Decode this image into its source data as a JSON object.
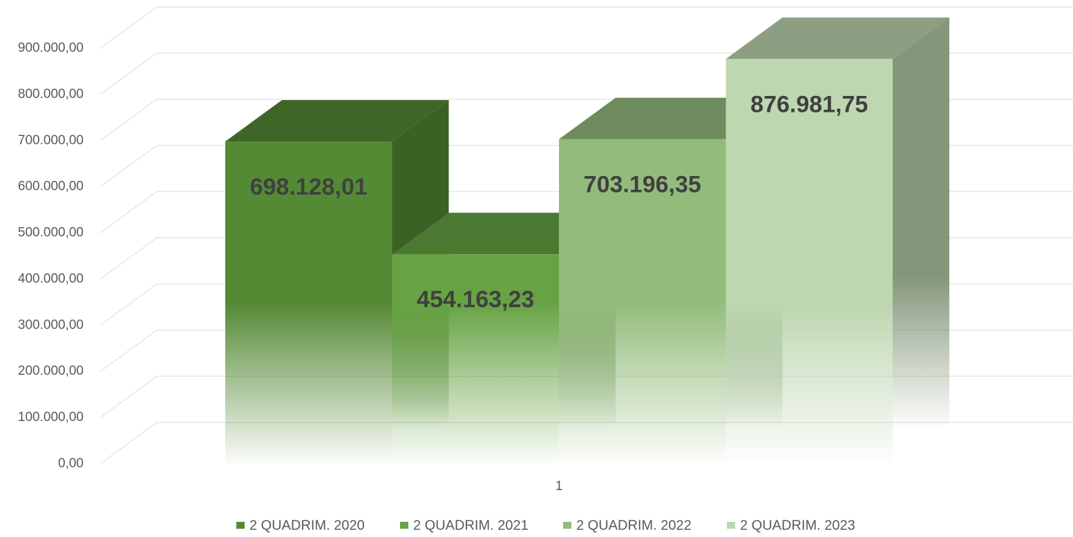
{
  "chart_data": {
    "type": "bar3d",
    "categories": [
      "1"
    ],
    "series": [
      {
        "name": "2 QUADRIM. 2020",
        "color": "#558a35",
        "values": [
          698128.01
        ],
        "value_labels": [
          "698.128,01"
        ]
      },
      {
        "name": "2 QUADRIM. 2021",
        "color": "#67a343",
        "values": [
          454163.23
        ],
        "value_labels": [
          "454.163,23"
        ]
      },
      {
        "name": "2 QUADRIM. 2022",
        "color": "#93bc7c",
        "values": [
          703196.35
        ],
        "value_labels": [
          "703.196,35"
        ]
      },
      {
        "name": "2 QUADRIM. 2023",
        "color": "#bdd7b0",
        "values": [
          876981.75
        ],
        "value_labels": [
          "876.981,75"
        ]
      }
    ],
    "ylim": [
      0,
      900000
    ],
    "yticks": [
      {
        "value": 0,
        "label": "0,00"
      },
      {
        "value": 100000,
        "label": "100.000,00"
      },
      {
        "value": 200000,
        "label": "200.000,00"
      },
      {
        "value": 300000,
        "label": "300.000,00"
      },
      {
        "value": 400000,
        "label": "400.000,00"
      },
      {
        "value": 500000,
        "label": "500.000,00"
      },
      {
        "value": 600000,
        "label": "600.000,00"
      },
      {
        "value": 700000,
        "label": "700.000,00"
      },
      {
        "value": 800000,
        "label": "800.000,00"
      },
      {
        "value": 900000,
        "label": "900.000,00"
      }
    ],
    "grid": true,
    "legend": "bottom"
  }
}
